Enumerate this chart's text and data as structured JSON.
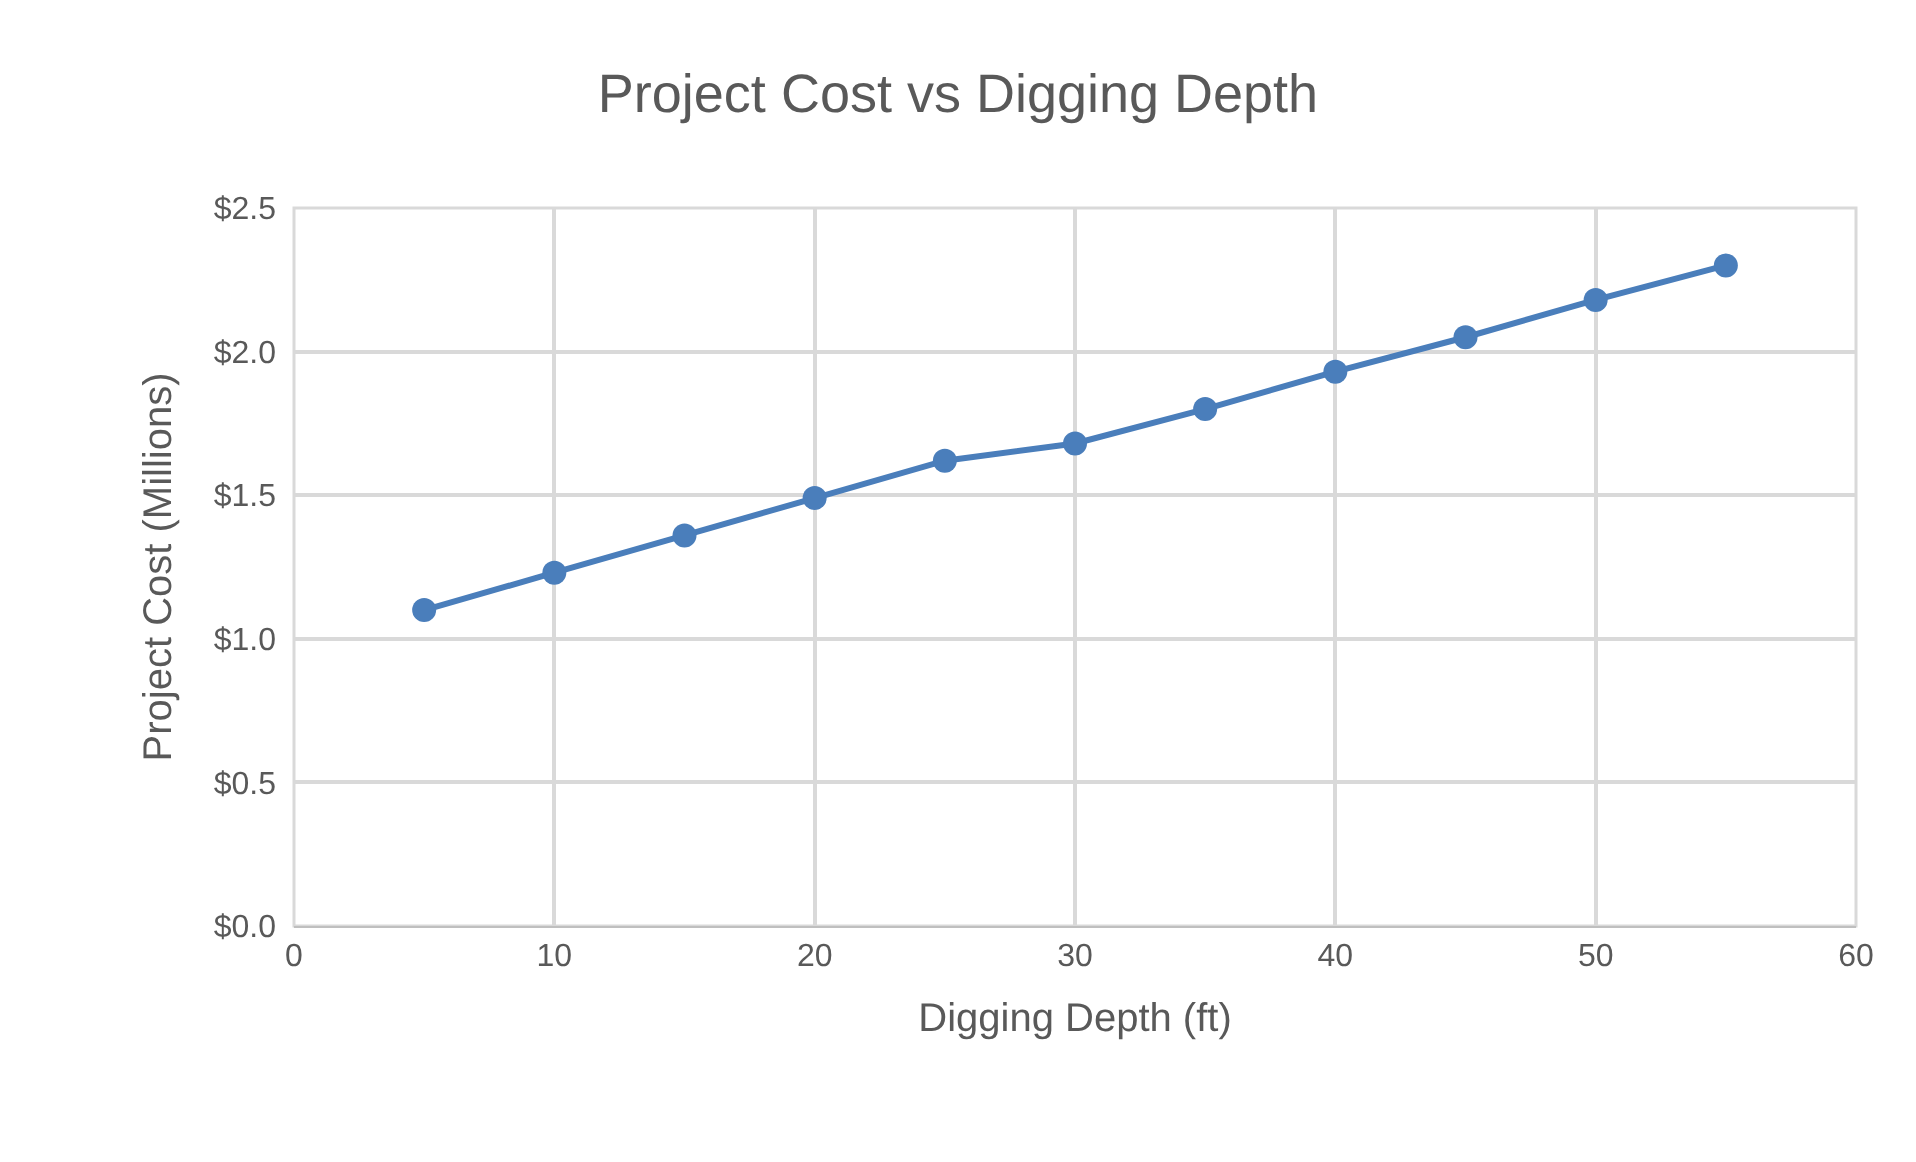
{
  "chart_data": {
    "type": "line",
    "title": "Project Cost vs Digging Depth",
    "xlabel": "Digging Depth (ft)",
    "ylabel": "Project Cost (Millions)",
    "x": [
      5,
      10,
      15,
      20,
      25,
      30,
      35,
      40,
      45,
      50,
      55
    ],
    "series": [
      {
        "color": "#4a7ebb",
        "values": [
          1.1,
          1.23,
          1.36,
          1.49,
          1.62,
          1.68,
          1.8,
          1.93,
          2.05,
          2.18,
          2.3
        ]
      }
    ],
    "xlim": [
      0,
      60
    ],
    "xticks": [
      0,
      10,
      20,
      30,
      40,
      50,
      60
    ],
    "ylim": [
      0,
      2.5
    ],
    "yticks": [
      {
        "value": 0,
        "label": "$0.0"
      },
      {
        "value": 0.5,
        "label": "$0.5"
      },
      {
        "value": 1.0,
        "label": "$1.0"
      },
      {
        "value": 1.5,
        "label": "$1.5"
      },
      {
        "value": 2.0,
        "label": "$2.0"
      },
      {
        "value": 2.5,
        "label": "$2.5"
      }
    ],
    "grid": true,
    "marker": "circle",
    "line_style": "solid"
  }
}
